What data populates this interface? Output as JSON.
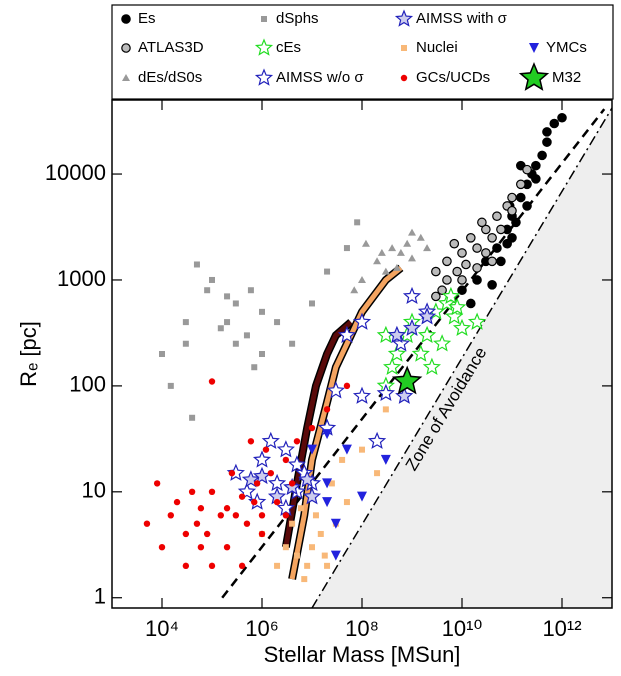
{
  "chart_data": {
    "type": "scatter",
    "xlabel": "Stellar Mass [MSun]",
    "ylabel": "Rₑ [pc]",
    "xscale": "log",
    "yscale": "log",
    "xlim": [
      1000,
      10000000000000.0
    ],
    "ylim": [
      0.8,
      50000
    ],
    "xticks": [
      {
        "value": 10000,
        "label": "10⁴"
      },
      {
        "value": 1000000,
        "label": "10⁶"
      },
      {
        "value": 100000000,
        "label": "10⁸"
      },
      {
        "value": 10000000000,
        "label": "10¹⁰"
      },
      {
        "value": 1000000000000,
        "label": "10¹²"
      }
    ],
    "yticks": [
      1,
      10,
      100,
      1000,
      10000
    ],
    "annotations": [
      {
        "text": "Zone of Avoidance",
        "x": 5000000000.0,
        "y": 60
      }
    ],
    "lines": [
      {
        "style": "dashed",
        "color": "#000000",
        "x": [
          160000,
          7000000000000.0
        ],
        "y": [
          1,
          41000
        ]
      },
      {
        "style": "dashdot",
        "color": "#000000",
        "x": [
          10000000.0,
          10000000000000.0
        ],
        "y": [
          0.8,
          42000
        ]
      },
      {
        "style": "track",
        "color": "#5a0a0a",
        "x": [
          3000000,
          5000000,
          8000000,
          12000000,
          20000000,
          30000000,
          60000000
        ],
        "y": [
          3,
          12,
          40,
          100,
          200,
          300,
          400
        ]
      },
      {
        "style": "track",
        "color": "#f4a460",
        "x": [
          4000000,
          7000000,
          10000000,
          20000000,
          30000000,
          60000000,
          100000000,
          300000000,
          600000000
        ],
        "y": [
          1.5,
          6,
          20,
          70,
          150,
          300,
          500,
          1000,
          1300
        ]
      }
    ],
    "series": [
      {
        "name": "Es",
        "color": "#000000",
        "stroke": "#000000",
        "marker": "circle",
        "x": [
          10000000000.0,
          20000000000.0,
          30000000000.0,
          50000000000.0,
          80000000000.0,
          100000000000.0,
          150000000000.0,
          200000000000.0,
          300000000000.0,
          500000000000.0,
          200000000000.0,
          100000000000.0,
          60000000000.0,
          40000000000.0,
          15000000000.0,
          300000000000.0,
          400000000000.0,
          250000000000.0,
          120000000000.0,
          80000000000.0,
          700000000000.0,
          1000000000000.0,
          500000000000.0,
          150000000000.0,
          90000000000.0
        ],
        "y": [
          800,
          1000,
          1500,
          2000,
          3000,
          4000,
          6000,
          8000,
          12000,
          20000,
          5000,
          2500,
          1500,
          900,
          600,
          9000,
          15000,
          10000,
          3500,
          2200,
          30000,
          34000,
          25000,
          12000,
          5000
        ]
      },
      {
        "name": "ATLAS3D",
        "color": "#bbbbbb",
        "stroke": "#000000",
        "marker": "circle",
        "x": [
          3000000000.0,
          5000000000.0,
          5000000000.0,
          8000000000.0,
          10000000000.0,
          10000000000.0,
          15000000000.0,
          20000000000.0,
          20000000000.0,
          30000000000.0,
          30000000000.0,
          40000000000.0,
          50000000000.0,
          60000000000.0,
          80000000000.0,
          100000000000.0,
          150000000000.0,
          200000000000.0,
          3000000000.0,
          4000000000.0,
          7000000000.0,
          12000000000.0,
          25000000000.0,
          100000000000.0,
          40000000000.0
        ],
        "y": [
          700,
          1000,
          1500,
          1200,
          1800,
          1000,
          2500,
          2000,
          1300,
          3000,
          1800,
          2500,
          4000,
          3000,
          5000,
          6000,
          8000,
          11000,
          1200,
          800,
          2200,
          1400,
          3500,
          4500,
          1500
        ]
      },
      {
        "name": "dEs/dS0s",
        "color": "#999999",
        "stroke": "none",
        "marker": "triangle",
        "x": [
          100000000.0,
          200000000.0,
          300000000.0,
          400000000.0,
          600000000.0,
          800000000.0,
          1000000000.0,
          1500000000.0,
          2000000000.0,
          250000000.0,
          500000000.0,
          1000000000.0,
          70000000.0,
          120000000.0
        ],
        "y": [
          1000,
          1500,
          1200,
          2000,
          1800,
          2200,
          1600,
          2500,
          2000,
          1800,
          1300,
          2800,
          800,
          2200
        ]
      },
      {
        "name": "dSphs",
        "color": "#999999",
        "stroke": "none",
        "marker": "square",
        "x": [
          10000,
          30000,
          50000,
          100000,
          200000,
          200000,
          300000,
          500000,
          1000000,
          15000,
          40000,
          80000,
          300000,
          600000,
          1000000,
          2000000,
          10000000,
          50000000,
          80000000,
          30000,
          150000,
          700000,
          4000000,
          20000000
        ],
        "y": [
          200,
          400,
          1400,
          1000,
          700,
          400,
          600,
          300,
          500,
          100,
          50,
          800,
          250,
          800,
          200,
          400,
          600,
          2000,
          3500,
          250,
          350,
          150,
          250,
          1200
        ]
      },
      {
        "name": "cEs",
        "color": "#ffffff",
        "stroke": "#22dd22",
        "marker": "star",
        "x": [
          300000000.0,
          500000000.0,
          800000000.0,
          1000000000.0,
          2000000000.0,
          3000000000.0,
          5000000000.0,
          7000000000.0,
          10000000000.0,
          20000000000.0,
          1500000000.0,
          4000000000.0,
          6000000000.0,
          2500000000.0,
          8000000000.0,
          300000000.0,
          400000000.0
        ],
        "y": [
          100,
          200,
          300,
          400,
          300,
          500,
          600,
          450,
          350,
          400,
          200,
          250,
          700,
          150,
          550,
          300,
          150
        ]
      },
      {
        "name": "AIMSS w/o σ",
        "color": "#ffffff",
        "stroke": "#2222bb",
        "marker": "star",
        "x": [
          300000,
          500000,
          800000,
          1000000,
          2000000,
          3000000,
          5000000,
          7000000,
          10000000,
          5000000,
          3000000,
          1500000,
          20000000,
          30000000,
          50000000,
          100000000,
          200000000,
          100000000,
          300000000,
          600000000,
          1000000000,
          2000000000
        ],
        "y": [
          15,
          10,
          8,
          20,
          12,
          7,
          10,
          15,
          12,
          18,
          25,
          30,
          40,
          90,
          300,
          400,
          30,
          80,
          85,
          250,
          700,
          500
        ]
      },
      {
        "name": "AIMSS with σ",
        "color": "#ccccee",
        "stroke": "#2222bb",
        "marker": "star",
        "x": [
          600000,
          1000000,
          2000000,
          4000000,
          8000000,
          10000000,
          500000000,
          1000000000,
          2000000000,
          700000000
        ],
        "y": [
          13,
          14,
          9,
          11,
          13,
          9,
          300,
          350,
          450,
          80
        ]
      },
      {
        "name": "Nuclei",
        "color": "#f8b878",
        "stroke": "none",
        "marker": "square",
        "x": [
          2000000,
          3000000,
          5000000,
          8000000,
          10000000,
          15000000,
          20000000,
          30000000,
          50000000,
          1000000,
          4000000,
          6000000,
          12000000,
          25000000,
          40000000,
          100000000,
          300000000,
          200000000,
          7000000,
          18000000
        ],
        "y": [
          2,
          3,
          2.5,
          2,
          3,
          4,
          2,
          5,
          8,
          4,
          5,
          7,
          6,
          12,
          20,
          25,
          60,
          15,
          1.5,
          2.5
        ]
      },
      {
        "name": "GCs/UCDs",
        "color": "#ee0000",
        "stroke": "none",
        "marker": "circle",
        "x": [
          5000,
          10000,
          20000,
          30000,
          50000,
          80000,
          100000,
          200000,
          300000,
          500000,
          800000,
          1000000,
          2000000,
          3000000,
          5000000,
          10000000,
          20000000,
          50000000,
          15000,
          40000,
          60000,
          150000,
          250000,
          400000,
          700000,
          1200000,
          1500000,
          4000000,
          600000,
          200000,
          30000,
          100000,
          8000,
          60000,
          1000000,
          100000,
          3000000,
          400000
        ],
        "y": [
          5,
          3,
          8,
          2,
          5,
          4,
          10,
          3,
          6,
          5,
          12,
          4,
          8,
          20,
          30,
          40,
          60,
          100,
          6,
          10,
          3,
          6,
          15,
          2,
          8,
          25,
          15,
          12,
          30,
          7,
          4,
          2,
          12,
          7,
          6,
          110,
          6,
          9
        ]
      },
      {
        "name": "YMCs",
        "color": "#2222dd",
        "stroke": "none",
        "marker": "tridown",
        "x": [
          10000000,
          20000000,
          20000000,
          30000000,
          30000000,
          50000000,
          100000000,
          300000000,
          20000000
        ],
        "y": [
          25,
          8,
          12,
          5,
          2.5,
          25,
          9,
          20,
          35
        ]
      },
      {
        "name": "M32",
        "color": "#22cc22",
        "stroke": "#000000",
        "marker": "bigstar",
        "x": [
          800000000
        ],
        "y": [
          110
        ]
      }
    ]
  }
}
